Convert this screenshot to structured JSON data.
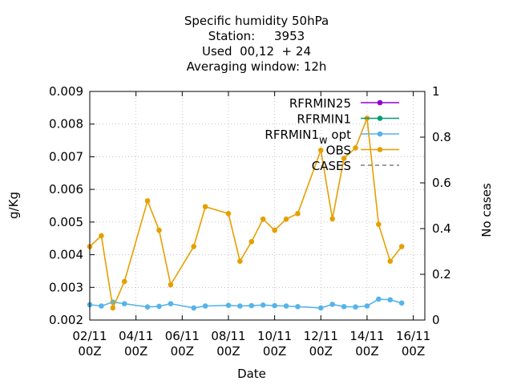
{
  "chart_data": {
    "type": "line",
    "title_lines": [
      "Specific humidity 50hPa",
      "Station:     3953",
      "Used  00,12  + 24",
      "Averaging window: 12h"
    ],
    "xlabel": "Date",
    "ylabel": "g/Kg",
    "y2label": "No cases",
    "x_range_days": [
      2,
      16.5
    ],
    "ylim": [
      0.002,
      0.009
    ],
    "y2lim": [
      0,
      1
    ],
    "x_ticks": [
      {
        "day": 2,
        "line1": "02/11",
        "line2": "00Z"
      },
      {
        "day": 4,
        "line1": "04/11",
        "line2": "00Z"
      },
      {
        "day": 6,
        "line1": "06/11",
        "line2": "00Z"
      },
      {
        "day": 8,
        "line1": "08/11",
        "line2": "00Z"
      },
      {
        "day": 10,
        "line1": "10/11",
        "line2": "00Z"
      },
      {
        "day": 12,
        "line1": "12/11",
        "line2": "00Z"
      },
      {
        "day": 14,
        "line1": "14/11",
        "line2": "00Z"
      },
      {
        "day": 16,
        "line1": "16/11",
        "line2": "00Z"
      }
    ],
    "y_ticks": [
      "0.002",
      "0.003",
      "0.004",
      "0.005",
      "0.006",
      "0.007",
      "0.008",
      "0.009"
    ],
    "y2_ticks": [
      "0",
      "0.2",
      "0.4",
      "0.6",
      "0.8",
      "1"
    ],
    "legend_position": "top-right",
    "series": [
      {
        "name": "RFRMIN25",
        "color": "#9400d3",
        "style": "solid",
        "x": [],
        "values": []
      },
      {
        "name": "RFRMIN1",
        "color": "#009e73",
        "style": "solid",
        "x": [],
        "values": []
      },
      {
        "name": "RFRMIN1",
        "subscript": "w",
        "suffix": "opt",
        "color": "#56b4e9",
        "style": "solid",
        "x": [
          2.0,
          2.5,
          3.0,
          3.5,
          4.5,
          5.0,
          5.5,
          6.5,
          7.0,
          8.0,
          8.5,
          9.0,
          9.5,
          10.0,
          10.5,
          11.0,
          12.0,
          12.5,
          13.0,
          13.5,
          14.0,
          14.5,
          15.0,
          15.5
        ],
        "values": [
          0.00247,
          0.00243,
          0.00255,
          0.0025,
          0.0024,
          0.00242,
          0.0025,
          0.00237,
          0.00243,
          0.00245,
          0.00243,
          0.00244,
          0.00246,
          0.00244,
          0.00243,
          0.00241,
          0.00237,
          0.00248,
          0.00241,
          0.0024,
          0.00243,
          0.00264,
          0.00262,
          0.00252
        ]
      },
      {
        "name": "OBS",
        "color": "#e69f00",
        "style": "solid",
        "x": [
          2.0,
          2.5,
          3.0,
          3.5,
          4.5,
          5.0,
          5.5,
          6.5,
          7.0,
          8.0,
          8.5,
          9.0,
          9.5,
          10.0,
          10.5,
          11.0,
          12.0,
          12.5,
          13.0,
          13.5,
          14.0,
          14.5,
          15.0,
          15.5
        ],
        "values": [
          0.00425,
          0.00458,
          0.00237,
          0.00318,
          0.00565,
          0.00475,
          0.00308,
          0.00425,
          0.00547,
          0.00526,
          0.0038,
          0.0044,
          0.00509,
          0.00475,
          0.00509,
          0.00526,
          0.0072,
          0.0051,
          0.00695,
          0.00727,
          0.00818,
          0.00493,
          0.0038,
          0.00425
        ]
      },
      {
        "name": "CASES",
        "color": "#808080",
        "style": "dashed",
        "x": [],
        "values": []
      }
    ]
  }
}
